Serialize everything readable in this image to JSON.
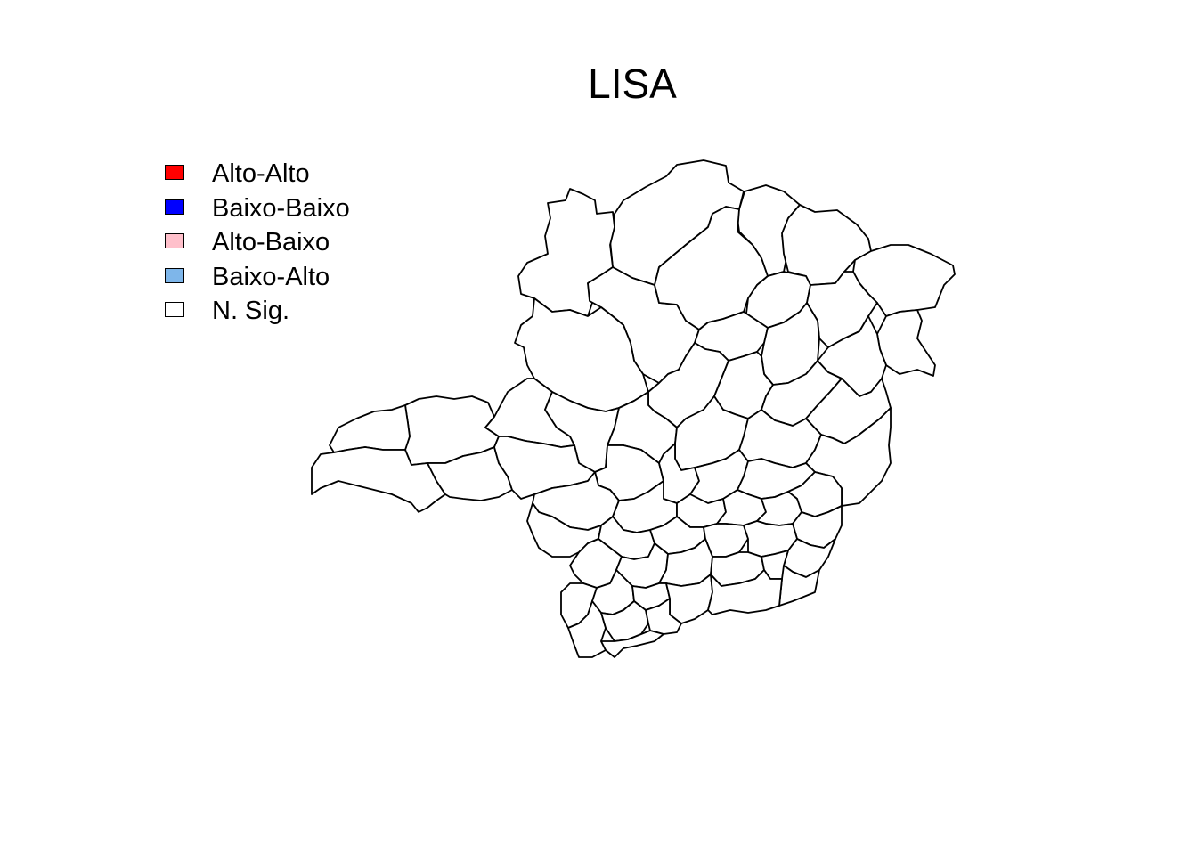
{
  "title": "LISA",
  "legend": {
    "items": [
      {
        "label": "Alto-Alto",
        "color": "#FF0000"
      },
      {
        "label": "Baixo-Baixo",
        "color": "#0000FF"
      },
      {
        "label": "Alto-Baixo",
        "color": "#FFC0CB"
      },
      {
        "label": "Baixo-Alto",
        "color": "#7EB6EA"
      },
      {
        "label": "N. Sig.",
        "color": "#FFFFFF"
      }
    ]
  },
  "map": {
    "region_fill": "#FFFFFF",
    "region_category": "N. Sig.",
    "border_color": "#000000"
  }
}
